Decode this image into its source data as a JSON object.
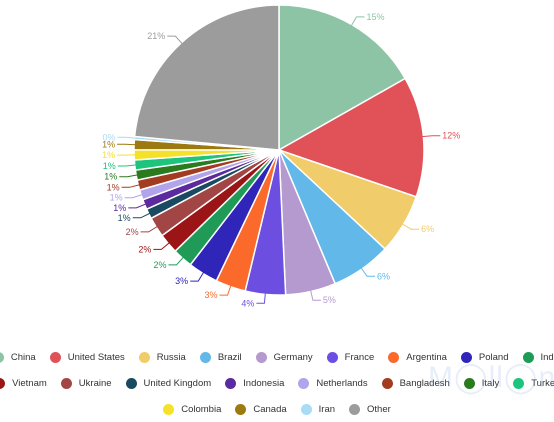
{
  "chart_data": {
    "type": "pie",
    "title": "",
    "slices": [
      {
        "label": "China",
        "value": 15,
        "value_label": "15%",
        "color": "#8ec4a6"
      },
      {
        "label": "United States",
        "value": 12,
        "value_label": "12%",
        "color": "#e05257"
      },
      {
        "label": "Russia",
        "value": 6,
        "value_label": "6%",
        "color": "#f0cd6a"
      },
      {
        "label": "Brazil",
        "value": 6,
        "value_label": "6%",
        "color": "#62b8e8"
      },
      {
        "label": "Germany",
        "value": 5,
        "value_label": "5%",
        "color": "#b59ad0"
      },
      {
        "label": "France",
        "value": 4,
        "value_label": "4%",
        "color": "#6c4fe0"
      },
      {
        "label": "Argentina",
        "value": 3,
        "value_label": "3%",
        "color": "#fb6a2b"
      },
      {
        "label": "Poland",
        "value": 3,
        "value_label": "3%",
        "color": "#2f25b8"
      },
      {
        "label": "India",
        "value": 2,
        "value_label": "2%",
        "color": "#1f9a57"
      },
      {
        "label": "Vietnam",
        "value": 2,
        "value_label": "2%",
        "color": "#9b1516"
      },
      {
        "label": "Ukraine",
        "value": 2,
        "value_label": "2%",
        "color": "#a14545"
      },
      {
        "label": "United Kingdom",
        "value": 1,
        "value_label": "1%",
        "color": "#1a4a61"
      },
      {
        "label": "Indonesia",
        "value": 1,
        "value_label": "1%",
        "color": "#5b2a9c"
      },
      {
        "label": "Netherlands",
        "value": 1,
        "value_label": "1%",
        "color": "#b1a4ea"
      },
      {
        "label": "Bangladesh",
        "value": 1,
        "value_label": "1%",
        "color": "#a23b20"
      },
      {
        "label": "Italy",
        "value": 1,
        "value_label": "1%",
        "color": "#2a7a1e"
      },
      {
        "label": "Turkey",
        "value": 1,
        "value_label": "1%",
        "color": "#1fc47c"
      },
      {
        "label": "Colombia",
        "value": 1,
        "value_label": "1%",
        "color": "#f6e12a"
      },
      {
        "label": "Canada",
        "value": 1,
        "value_label": "1%",
        "color": "#9c7a10"
      },
      {
        "label": "Iran",
        "value": 0.3,
        "value_label": "0%",
        "color": "#a8dcf5"
      },
      {
        "label": "Other",
        "value": 21,
        "value_label": "21%",
        "color": "#9c9c9c"
      }
    ],
    "legend_position": "bottom"
  },
  "legend_rows": [
    [
      "China",
      "United States",
      "Russia",
      "Brazil",
      "Germany",
      "France",
      "Argentina",
      "Poland",
      "India"
    ],
    [
      "Vietnam",
      "Ukraine",
      "United Kingdom",
      "Indonesia",
      "Netherlands",
      "Bangladesh",
      "Italy",
      "Turkey"
    ],
    [
      "Colombia",
      "Canada",
      "Iran",
      "Other"
    ]
  ]
}
